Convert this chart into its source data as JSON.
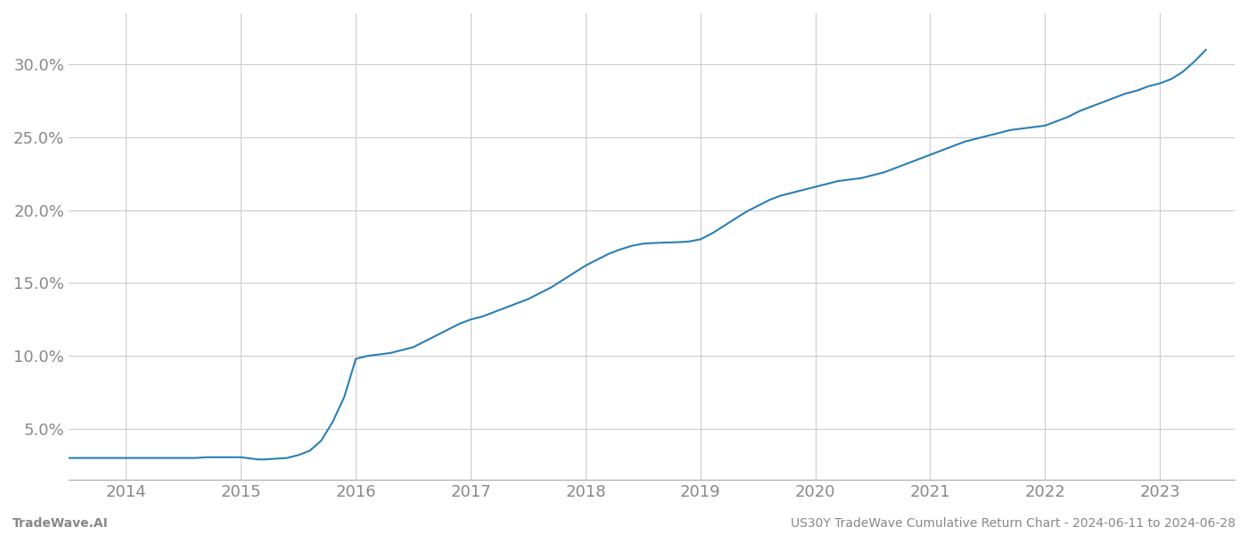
{
  "x_years": [
    2013.5,
    2014.0,
    2014.1,
    2014.2,
    2014.3,
    2014.4,
    2014.5,
    2014.6,
    2014.7,
    2014.8,
    2014.9,
    2015.0,
    2015.05,
    2015.1,
    2015.15,
    2015.2,
    2015.3,
    2015.4,
    2015.5,
    2015.6,
    2015.7,
    2015.8,
    2015.9,
    2016.0,
    2016.1,
    2016.2,
    2016.3,
    2016.4,
    2016.5,
    2016.6,
    2016.7,
    2016.8,
    2016.9,
    2017.0,
    2017.1,
    2017.2,
    2017.3,
    2017.4,
    2017.5,
    2017.6,
    2017.7,
    2017.8,
    2017.9,
    2018.0,
    2018.1,
    2018.2,
    2018.3,
    2018.4,
    2018.5,
    2018.6,
    2018.7,
    2018.8,
    2018.9,
    2019.0,
    2019.1,
    2019.2,
    2019.3,
    2019.4,
    2019.5,
    2019.6,
    2019.7,
    2019.8,
    2019.9,
    2020.0,
    2020.1,
    2020.2,
    2020.3,
    2020.4,
    2020.5,
    2020.6,
    2020.7,
    2020.8,
    2020.9,
    2021.0,
    2021.1,
    2021.2,
    2021.3,
    2021.4,
    2021.5,
    2021.6,
    2021.7,
    2021.8,
    2021.9,
    2022.0,
    2022.1,
    2022.2,
    2022.3,
    2022.4,
    2022.5,
    2022.6,
    2022.7,
    2022.8,
    2022.9,
    2023.0,
    2023.1,
    2023.2,
    2023.3,
    2023.4
  ],
  "y_values": [
    3.0,
    3.0,
    3.0,
    3.0,
    3.0,
    3.0,
    3.0,
    3.0,
    3.05,
    3.05,
    3.05,
    3.05,
    3.0,
    2.95,
    2.9,
    2.9,
    2.95,
    3.0,
    3.2,
    3.5,
    4.2,
    5.5,
    7.2,
    9.8,
    10.0,
    10.1,
    10.2,
    10.4,
    10.6,
    11.0,
    11.4,
    11.8,
    12.2,
    12.5,
    12.7,
    13.0,
    13.3,
    13.6,
    13.9,
    14.3,
    14.7,
    15.2,
    15.7,
    16.2,
    16.6,
    17.0,
    17.3,
    17.55,
    17.7,
    17.75,
    17.78,
    17.8,
    17.85,
    18.0,
    18.4,
    18.9,
    19.4,
    19.9,
    20.3,
    20.7,
    21.0,
    21.2,
    21.4,
    21.6,
    21.8,
    22.0,
    22.1,
    22.2,
    22.4,
    22.6,
    22.9,
    23.2,
    23.5,
    23.8,
    24.1,
    24.4,
    24.7,
    24.9,
    25.1,
    25.3,
    25.5,
    25.6,
    25.7,
    25.8,
    26.1,
    26.4,
    26.8,
    27.1,
    27.4,
    27.7,
    28.0,
    28.2,
    28.5,
    28.7,
    29.0,
    29.5,
    30.2,
    31.0
  ],
  "line_color": "#2a7fb5",
  "line_width": 1.5,
  "background_color": "#ffffff",
  "grid_color": "#cccccc",
  "ytick_labels": [
    "5.0%",
    "10.0%",
    "15.0%",
    "20.0%",
    "25.0%",
    "30.0%"
  ],
  "ytick_values": [
    5.0,
    10.0,
    15.0,
    20.0,
    25.0,
    30.0
  ],
  "xtick_labels": [
    "2014",
    "2015",
    "2016",
    "2017",
    "2018",
    "2019",
    "2020",
    "2021",
    "2022",
    "2023"
  ],
  "xtick_values": [
    2014,
    2015,
    2016,
    2017,
    2018,
    2019,
    2020,
    2021,
    2022,
    2023
  ],
  "xlim": [
    2013.5,
    2023.65
  ],
  "ylim": [
    1.5,
    33.5
  ],
  "footer_left": "TradeWave.AI",
  "footer_right": "US30Y TradeWave Cumulative Return Chart - 2024-06-11 to 2024-06-28",
  "tick_color": "#888888",
  "footer_fontsize": 10,
  "axis_tick_fontsize": 13,
  "footer_color": "#888888"
}
